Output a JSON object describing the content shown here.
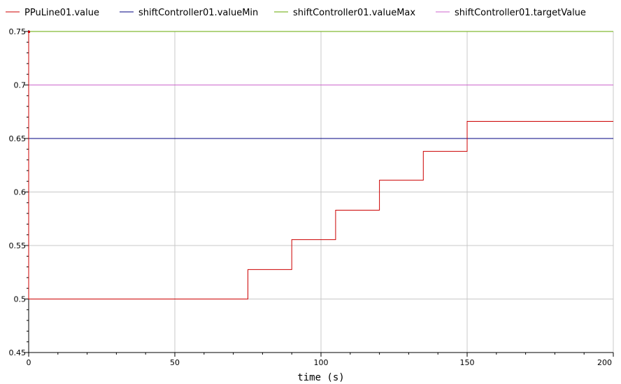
{
  "chart_data": {
    "type": "line",
    "title": "",
    "xlabel": "time (s)",
    "ylabel": "",
    "xlim": [
      0,
      200
    ],
    "ylim": [
      0.45,
      0.75
    ],
    "xticks": [
      0,
      50,
      100,
      150,
      200
    ],
    "xtick_labels": [
      "0",
      "50",
      "100",
      "150",
      "200"
    ],
    "yticks": [
      0.45,
      0.5,
      0.55,
      0.6,
      0.65,
      0.7,
      0.75
    ],
    "ytick_labels": [
      "0.45",
      "0.5",
      "0.55",
      "0.6",
      "0.65",
      "0.7",
      "0.75"
    ],
    "grid": true,
    "legend_position": "top",
    "series": [
      {
        "name": "PPuLine01.value",
        "color": "#cc0000",
        "step": true,
        "x": [
          0,
          0,
          75,
          90,
          105,
          120,
          135,
          150,
          200
        ],
        "y": [
          0.75,
          0.5,
          0.5275,
          0.5555,
          0.583,
          0.611,
          0.638,
          0.666,
          0.666
        ]
      },
      {
        "name": "shiftController01.valueMin",
        "color": "#000080",
        "step": false,
        "x": [
          0,
          200
        ],
        "y": [
          0.65,
          0.65
        ]
      },
      {
        "name": "shiftController01.valueMax",
        "color": "#66aa00",
        "step": false,
        "x": [
          0,
          200
        ],
        "y": [
          0.75,
          0.75
        ]
      },
      {
        "name": "shiftController01.targetValue",
        "color": "#cc66cc",
        "step": false,
        "x": [
          0,
          200
        ],
        "y": [
          0.7,
          0.7
        ]
      }
    ]
  }
}
